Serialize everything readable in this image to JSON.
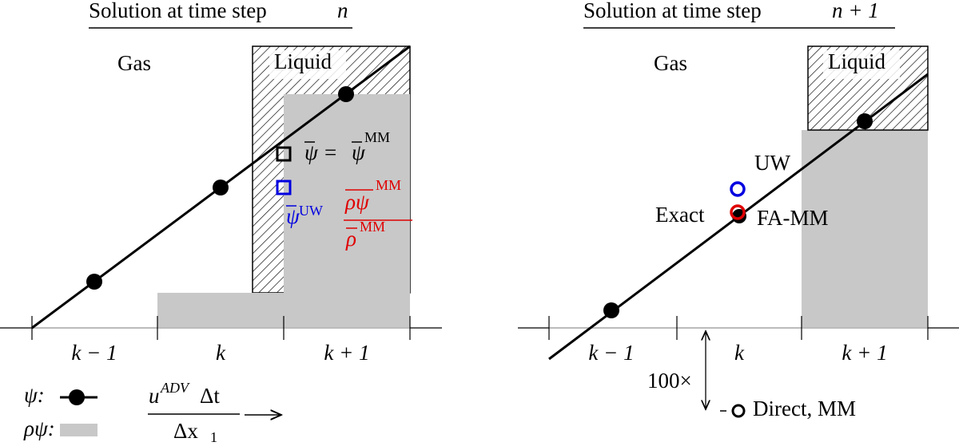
{
  "left": {
    "title_prefix": "Solution at time step",
    "title_var": "n",
    "gas": "Gas",
    "liquid": "Liquid",
    "cells": [
      "k − 1",
      "k",
      "k + 1"
    ],
    "eq": {
      "lhs": "ψ",
      "eq": "=",
      "rhs": "ψ",
      "sup": "MM"
    },
    "uw": {
      "sym": "ψ",
      "sup": "UW"
    },
    "frac": {
      "num": "ρψ",
      "num_sup": "MM",
      "den": "ρ",
      "den_sup": "MM"
    }
  },
  "right": {
    "title_prefix": "Solution at time step",
    "title_var": "n + 1",
    "gas": "Gas",
    "liquid": "Liquid",
    "cells": [
      "k − 1",
      "k",
      "k + 1"
    ],
    "uw": "UW",
    "exact": "Exact",
    "fa_mm": "FA-MM",
    "scale": "100×",
    "direct": "Direct, MM"
  },
  "legend": {
    "psi": "ψ:",
    "rho_psi": "ρψ:",
    "num_u": "u",
    "num_sup": "ADV",
    "num_dt": "Δt",
    "den": "Δx",
    "den_sub": "1"
  }
}
